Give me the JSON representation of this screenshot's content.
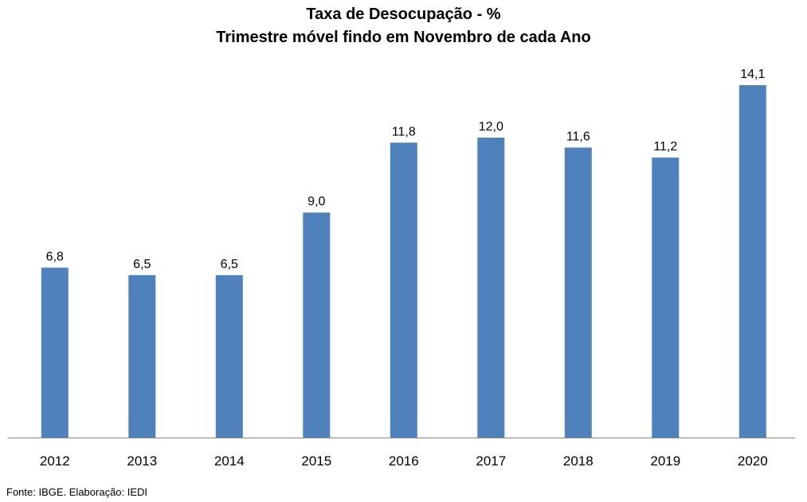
{
  "chart_data": {
    "type": "bar",
    "title": "Taxa de Desocupação - %",
    "subtitle": "Trimestre móvel findo em Novembro de cada Ano",
    "categories": [
      "2012",
      "2013",
      "2014",
      "2015",
      "2016",
      "2017",
      "2018",
      "2019",
      "2020"
    ],
    "values": [
      6.8,
      6.5,
      6.5,
      9.0,
      11.8,
      12.0,
      11.6,
      11.2,
      14.1
    ],
    "value_labels": [
      "6,8",
      "6,5",
      "6,5",
      "9,0",
      "11,8",
      "12,0",
      "11,6",
      "11,2",
      "14,1"
    ],
    "ylim": [
      0,
      14.1
    ],
    "grid": false,
    "legend": "none",
    "bar_color": "#4F81BD"
  },
  "source": "Fonte: IBGE. Elaboração: IEDI"
}
